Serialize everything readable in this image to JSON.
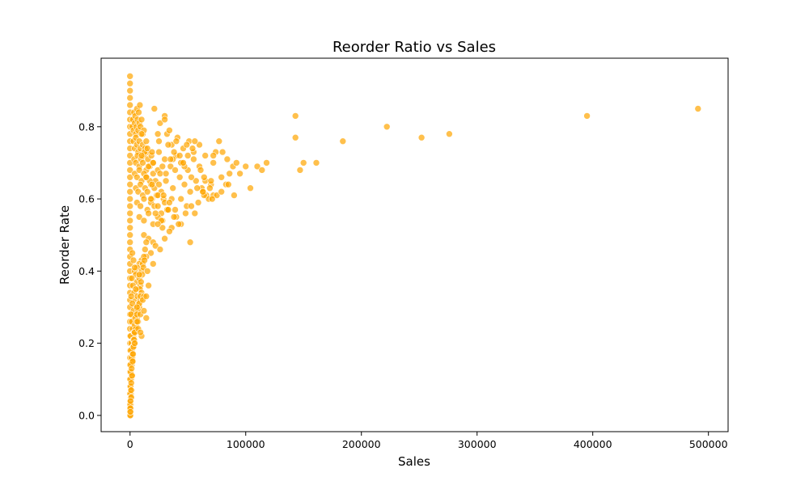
{
  "chart_data": {
    "type": "scatter",
    "title": "Reorder Ratio vs Sales",
    "xlabel": "Sales",
    "ylabel": "Reorder Rate",
    "xlim": [
      -25000,
      517000
    ],
    "ylim": [
      -0.045,
      0.99
    ],
    "xticks": [
      0,
      100000,
      200000,
      300000,
      400000,
      500000
    ],
    "xtick_labels": [
      "0",
      "100000",
      "200000",
      "300000",
      "400000",
      "500000"
    ],
    "yticks": [
      0.0,
      0.2,
      0.4,
      0.6,
      0.8
    ],
    "ytick_labels": [
      "0.0",
      "0.2",
      "0.4",
      "0.6",
      "0.8"
    ],
    "grid": false,
    "marker_color": "#FFA500",
    "marker_alpha": 0.7,
    "series": [
      {
        "x": [
          0,
          0,
          0,
          0,
          0,
          0,
          0,
          0,
          0,
          0,
          0,
          0,
          0,
          0,
          0,
          0,
          0,
          0,
          0,
          0,
          0,
          0,
          0,
          0,
          0,
          0,
          0,
          0,
          0,
          0,
          0,
          0,
          0,
          0,
          0,
          0,
          0,
          0,
          0,
          0,
          0,
          0,
          0,
          0,
          0,
          0,
          0,
          0,
          0,
          2000,
          2500,
          3000,
          3500,
          4000,
          4500,
          5000,
          5500,
          6000,
          6500,
          7000,
          7500,
          8000,
          8500,
          9000,
          10000,
          11000,
          12000,
          3000,
          4000,
          5000,
          6000,
          7000,
          8000,
          9000,
          10000,
          11000,
          12000,
          13000,
          14000,
          15000,
          3500,
          5000,
          6500,
          8000,
          9500,
          11000,
          12500,
          14000,
          15500,
          17000,
          18500,
          20000,
          4000,
          6000,
          8000,
          10000,
          12000,
          14000,
          16000,
          18000,
          20000,
          22000,
          24000,
          5000,
          7000,
          9000,
          11000,
          13000,
          15000,
          17000,
          19000,
          21000,
          23000,
          25000,
          27000,
          29000,
          6000,
          9000,
          12000,
          15000,
          18000,
          21000,
          24000,
          27000,
          30000,
          33000,
          36000,
          8000,
          12000,
          16000,
          20000,
          24000,
          28000,
          32000,
          36000,
          40000,
          44000,
          10000,
          15000,
          20000,
          25000,
          30000,
          35000,
          40000,
          45000,
          50000,
          55000,
          60000,
          14000,
          19000,
          26000,
          31000,
          37000,
          43000,
          47000,
          52000,
          57000,
          62000,
          66000,
          70000,
          18000,
          24000,
          29000,
          34000,
          39000,
          44000,
          49000,
          56000,
          63000,
          68000,
          72000,
          22000,
          27000,
          33000,
          38000,
          42000,
          48000,
          53000,
          59000,
          64000,
          69000,
          25000,
          32000,
          36000,
          41000,
          46000,
          51000,
          55000,
          60000,
          65000,
          12000,
          16000,
          20000,
          22000,
          26000,
          30000,
          34000,
          28000,
          24000,
          18000,
          14000,
          10000,
          8000,
          6000,
          4000,
          2000,
          3000,
          4000,
          5000,
          6000,
          7000,
          8000,
          9000,
          10000,
          11000,
          12000,
          13000,
          14000,
          1500,
          2500,
          3500,
          4500,
          5500,
          6500,
          7500,
          8500,
          9500,
          10500,
          11500,
          12500,
          1000,
          2000,
          3000,
          4000,
          5000,
          6000,
          7000,
          8000,
          9000,
          10000,
          800,
          1500,
          2200,
          3000,
          3800,
          4500,
          5200,
          6000,
          7000,
          8000,
          9000,
          500,
          1000,
          1500,
          2000,
          2500,
          3000,
          3500,
          4000,
          4500,
          5000,
          5500,
          6000,
          500,
          1000,
          1500,
          2000,
          2500,
          3000,
          3500,
          4000,
          300,
          600,
          1000,
          1400,
          1800,
          2200,
          2600,
          200,
          500,
          800,
          1100,
          1400,
          1700,
          100,
          300,
          500,
          700,
          900,
          1100,
          100,
          250,
          400,
          550,
          700,
          50,
          150,
          250,
          350,
          7000,
          10000,
          14000,
          20000,
          6000,
          9000,
          12000,
          16000,
          5000,
          8000,
          11000,
          15000,
          4000,
          6500,
          9000,
          12000,
          14000,
          34000,
          24000,
          40000,
          19000,
          49000,
          56000,
          37000,
          30000,
          33000,
          38000,
          44000,
          50000,
          54000,
          47000,
          28000,
          31000,
          35000,
          39000,
          43000,
          21000,
          26000,
          30000,
          46000,
          53000,
          58000,
          61000,
          65000,
          72000,
          74000,
          77000,
          63000,
          70000,
          75000,
          79000,
          83000,
          86000,
          89000,
          71000,
          79000,
          85000,
          90000,
          95000,
          100000,
          64000,
          72000,
          80000,
          84000,
          92000,
          52000,
          104000,
          110000,
          114000,
          118000,
          143000,
          143000,
          147000,
          150000,
          161000,
          184000,
          222000,
          252000,
          276000,
          395000,
          491000
        ],
        "y": [
          0.94,
          0.92,
          0.9,
          0.88,
          0.86,
          0.84,
          0.82,
          0.8,
          0.78,
          0.76,
          0.74,
          0.72,
          0.7,
          0.68,
          0.66,
          0.64,
          0.62,
          0.6,
          0.58,
          0.56,
          0.54,
          0.52,
          0.5,
          0.48,
          0.46,
          0.44,
          0.42,
          0.4,
          0.38,
          0.36,
          0.34,
          0.32,
          0.3,
          0.28,
          0.26,
          0.24,
          0.22,
          0.2,
          0.18,
          0.16,
          0.14,
          0.12,
          0.1,
          0.08,
          0.06,
          0.04,
          0.02,
          0.01,
          0.0,
          0.8,
          0.82,
          0.79,
          0.84,
          0.81,
          0.83,
          0.78,
          0.8,
          0.85,
          0.82,
          0.79,
          0.84,
          0.81,
          0.86,
          0.8,
          0.82,
          0.78,
          0.79,
          0.76,
          0.74,
          0.77,
          0.75,
          0.73,
          0.76,
          0.74,
          0.78,
          0.75,
          0.72,
          0.74,
          0.76,
          0.73,
          0.71,
          0.7,
          0.72,
          0.69,
          0.71,
          0.7,
          0.73,
          0.68,
          0.71,
          0.69,
          0.72,
          0.7,
          0.67,
          0.66,
          0.68,
          0.65,
          0.67,
          0.66,
          0.69,
          0.64,
          0.67,
          0.65,
          0.68,
          0.63,
          0.62,
          0.64,
          0.61,
          0.63,
          0.62,
          0.65,
          0.6,
          0.63,
          0.61,
          0.64,
          0.62,
          0.6,
          0.59,
          0.58,
          0.6,
          0.57,
          0.59,
          0.58,
          0.61,
          0.56,
          0.59,
          0.57,
          0.6,
          0.55,
          0.54,
          0.56,
          0.53,
          0.55,
          0.54,
          0.57,
          0.52,
          0.55,
          0.53,
          0.72,
          0.74,
          0.7,
          0.73,
          0.71,
          0.69,
          0.72,
          0.7,
          0.68,
          0.71,
          0.69,
          0.66,
          0.64,
          0.67,
          0.65,
          0.63,
          0.66,
          0.64,
          0.62,
          0.65,
          0.63,
          0.61,
          0.64,
          0.6,
          0.58,
          0.61,
          0.59,
          0.57,
          0.6,
          0.58,
          0.56,
          0.62,
          0.6,
          0.61,
          0.56,
          0.54,
          0.57,
          0.55,
          0.53,
          0.56,
          0.58,
          0.59,
          0.61,
          0.63,
          0.76,
          0.78,
          0.75,
          0.77,
          0.74,
          0.76,
          0.73,
          0.75,
          0.72,
          0.5,
          0.49,
          0.48,
          0.47,
          0.46,
          0.49,
          0.51,
          0.52,
          0.53,
          0.45,
          0.44,
          0.43,
          0.42,
          0.41,
          0.4,
          0.45,
          0.43,
          0.41,
          0.39,
          0.37,
          0.35,
          0.38,
          0.36,
          0.4,
          0.42,
          0.44,
          0.46,
          0.48,
          0.38,
          0.36,
          0.34,
          0.32,
          0.3,
          0.33,
          0.31,
          0.35,
          0.37,
          0.39,
          0.41,
          0.43,
          0.33,
          0.31,
          0.29,
          0.27,
          0.25,
          0.28,
          0.26,
          0.3,
          0.32,
          0.34,
          0.28,
          0.26,
          0.24,
          0.22,
          0.2,
          0.23,
          0.25,
          0.27,
          0.29,
          0.31,
          0.33,
          0.22,
          0.2,
          0.18,
          0.16,
          0.19,
          0.21,
          0.23,
          0.25,
          0.27,
          0.24,
          0.26,
          0.28,
          0.18,
          0.16,
          0.14,
          0.17,
          0.15,
          0.19,
          0.21,
          0.23,
          0.14,
          0.12,
          0.1,
          0.13,
          0.11,
          0.15,
          0.17,
          0.1,
          0.08,
          0.06,
          0.09,
          0.07,
          0.11,
          0.06,
          0.04,
          0.05,
          0.03,
          0.07,
          0.05,
          0.03,
          0.02,
          0.04,
          0.01,
          0.02,
          0.01,
          0.02,
          0.0,
          0.01,
          0.24,
          0.22,
          0.27,
          0.42,
          0.3,
          0.28,
          0.33,
          0.36,
          0.35,
          0.39,
          0.32,
          0.4,
          0.2,
          0.26,
          0.23,
          0.29,
          0.33,
          0.79,
          0.78,
          0.76,
          0.73,
          0.75,
          0.76,
          0.71,
          0.83,
          0.75,
          0.73,
          0.7,
          0.72,
          0.74,
          0.69,
          0.69,
          0.67,
          0.71,
          0.68,
          0.72,
          0.85,
          0.81,
          0.82,
          0.7,
          0.66,
          0.63,
          0.68,
          0.65,
          0.7,
          0.73,
          0.76,
          0.62,
          0.65,
          0.61,
          0.66,
          0.64,
          0.67,
          0.69,
          0.6,
          0.62,
          0.64,
          0.61,
          0.67,
          0.69,
          0.66,
          0.72,
          0.73,
          0.71,
          0.7,
          0.48,
          0.63,
          0.69,
          0.68,
          0.7,
          0.83,
          0.77,
          0.68,
          0.7,
          0.7,
          0.76,
          0.8,
          0.77,
          0.78,
          0.83,
          0.85
        ]
      }
    ]
  }
}
